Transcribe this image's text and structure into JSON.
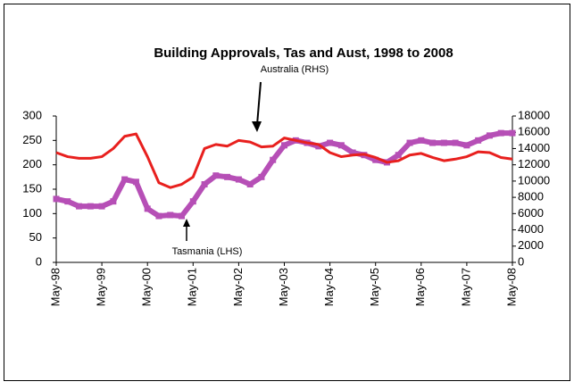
{
  "chart_data": {
    "type": "line",
    "title": "Building Approvals, Tas and Aust, 1998 to 2008",
    "annotations": [
      "Australia (RHS)",
      "Tasmania (LHS)"
    ],
    "categories": [
      "May-98",
      null,
      null,
      null,
      "May-99",
      null,
      null,
      null,
      "May-00",
      null,
      null,
      null,
      "May-01",
      null,
      null,
      null,
      "May-02",
      null,
      null,
      null,
      "May-03",
      null,
      null,
      null,
      "May-04",
      null,
      null,
      null,
      "May-05",
      null,
      null,
      null,
      "May-06",
      null,
      null,
      null,
      "May-07",
      null,
      null,
      null,
      "May-08"
    ],
    "series": [
      {
        "name": "Tasmania (LHS)",
        "color": "#b64fb6",
        "axis": "y",
        "values": [
          130,
          125,
          115,
          115,
          115,
          125,
          170,
          165,
          110,
          95,
          97,
          95,
          125,
          160,
          178,
          175,
          170,
          160,
          175,
          210,
          240,
          250,
          245,
          238,
          245,
          240,
          225,
          220,
          210,
          205,
          220,
          245,
          250,
          245,
          245,
          245,
          240,
          250,
          260,
          265,
          265
        ]
      },
      {
        "name": "Australia (RHS)",
        "color": "#e8201e",
        "axis": "y2",
        "values": [
          13500,
          13000,
          12800,
          12800,
          13000,
          14000,
          15500,
          15800,
          13000,
          9800,
          9200,
          9600,
          10500,
          14000,
          14500,
          14300,
          15000,
          14800,
          14200,
          14300,
          15300,
          15000,
          14700,
          14500,
          13500,
          13000,
          13200,
          13300,
          12900,
          12300,
          12500,
          13200,
          13400,
          12900,
          12500,
          12700,
          13000,
          13600,
          13500,
          12900,
          12700
        ]
      }
    ],
    "ylim": [
      0,
      300
    ],
    "yticks": [
      0,
      50,
      100,
      150,
      200,
      250,
      300
    ],
    "y2lim": [
      0,
      18000
    ],
    "y2ticks": [
      0,
      2000,
      4000,
      6000,
      8000,
      10000,
      12000,
      14000,
      16000,
      18000
    ],
    "grid": false
  }
}
